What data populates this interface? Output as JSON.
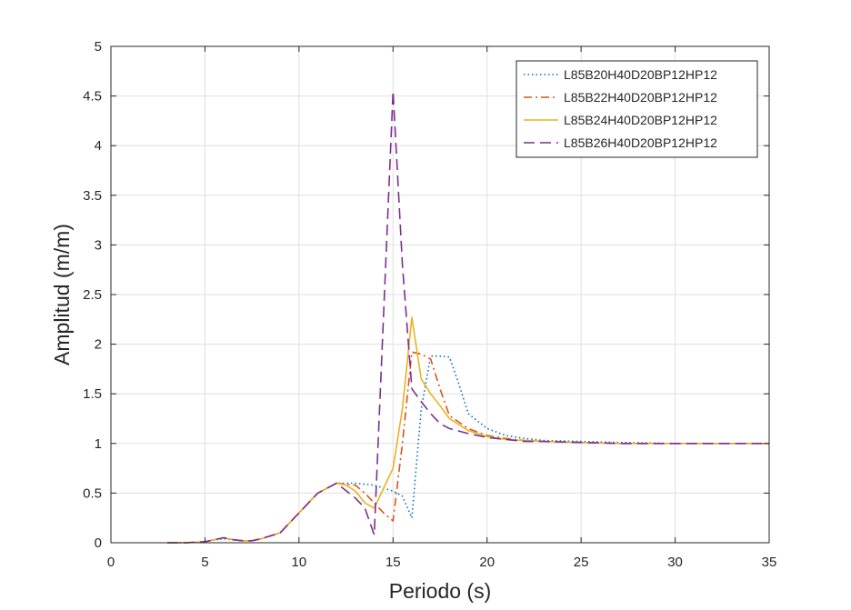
{
  "chart_data": {
    "type": "line",
    "title": "",
    "xlabel": "Periodo (s)",
    "ylabel": "Amplitud (m/m)",
    "xlim": [
      0,
      35
    ],
    "ylim": [
      0,
      5
    ],
    "xticks": [
      0,
      5,
      10,
      15,
      20,
      25,
      30,
      35
    ],
    "yticks": [
      0,
      0.5,
      1,
      1.5,
      2,
      2.5,
      3,
      3.5,
      4,
      4.5,
      5
    ],
    "xtick_labels": [
      "0",
      "5",
      "10",
      "15",
      "20",
      "25",
      "30",
      "35"
    ],
    "ytick_labels": [
      "0",
      "0.5",
      "1",
      "1.5",
      "2",
      "2.5",
      "3",
      "3.5",
      "4",
      "4.5",
      "5"
    ],
    "grid": true,
    "legend_position": "top-right",
    "series": [
      {
        "name": "L85B20H40D20BP12HP12",
        "color": "#0072BD",
        "dash": "dotted",
        "x": [
          3,
          4,
          5,
          5.5,
          6,
          6.5,
          7,
          7.5,
          8,
          9,
          10,
          11,
          12,
          13,
          14,
          14.5,
          15,
          15.5,
          16,
          16.5,
          17,
          17.5,
          18,
          18.5,
          19,
          20,
          21,
          22,
          23,
          25,
          27,
          30,
          35
        ],
        "y": [
          0,
          0,
          0.01,
          0.03,
          0.04,
          0.03,
          0.02,
          0.02,
          0.04,
          0.1,
          0.3,
          0.5,
          0.6,
          0.6,
          0.58,
          0.55,
          0.52,
          0.47,
          0.25,
          1.35,
          1.88,
          1.88,
          1.87,
          1.6,
          1.3,
          1.15,
          1.08,
          1.05,
          1.03,
          1.02,
          1.01,
          1.0,
          1.0
        ]
      },
      {
        "name": "L85B22H40D20BP12HP12",
        "color": "#D95319",
        "dash": "dashdot",
        "x": [
          3,
          4,
          5,
          5.5,
          6,
          6.5,
          7,
          7.5,
          8,
          9,
          10,
          11,
          12,
          13,
          13.5,
          14,
          14.5,
          15,
          15.5,
          16,
          16.5,
          17,
          17.5,
          18,
          19,
          20,
          21,
          22,
          23,
          25,
          27,
          30,
          35
        ],
        "y": [
          0,
          0,
          0.01,
          0.03,
          0.05,
          0.03,
          0.02,
          0.02,
          0.04,
          0.1,
          0.3,
          0.5,
          0.6,
          0.58,
          0.5,
          0.4,
          0.3,
          0.22,
          1.0,
          1.92,
          1.9,
          1.85,
          1.55,
          1.28,
          1.15,
          1.08,
          1.05,
          1.03,
          1.02,
          1.01,
          1.0,
          1.0,
          1.0
        ]
      },
      {
        "name": "L85B24H40D20BP12HP12",
        "color": "#EDB120",
        "dash": "solid",
        "x": [
          3,
          4,
          5,
          5.5,
          6,
          6.5,
          7,
          7.5,
          8,
          9,
          10,
          11,
          12,
          12.5,
          13,
          13.5,
          14,
          15,
          15.5,
          16,
          16.5,
          17,
          17.5,
          18,
          19,
          20,
          21,
          22,
          23,
          25,
          27,
          30,
          35
        ],
        "y": [
          0,
          0,
          0.01,
          0.03,
          0.05,
          0.03,
          0.02,
          0.02,
          0.04,
          0.1,
          0.3,
          0.5,
          0.6,
          0.58,
          0.52,
          0.4,
          0.35,
          0.75,
          1.35,
          2.27,
          1.65,
          1.5,
          1.38,
          1.25,
          1.13,
          1.07,
          1.04,
          1.03,
          1.02,
          1.01,
          1.0,
          1.0,
          1.0
        ]
      },
      {
        "name": "L85B26H40D20BP12HP12",
        "color": "#7E2F8E",
        "dash": "dashed",
        "x": [
          3,
          4,
          5,
          5.5,
          6,
          6.5,
          7,
          7.5,
          8,
          9,
          10,
          11,
          12,
          13,
          13.5,
          14,
          14.5,
          15,
          15.5,
          16,
          16.5,
          17,
          17.5,
          18,
          19,
          20,
          21,
          22,
          23,
          25,
          27,
          30,
          35
        ],
        "y": [
          0,
          0,
          0.01,
          0.03,
          0.05,
          0.03,
          0.02,
          0.02,
          0.04,
          0.1,
          0.3,
          0.5,
          0.6,
          0.45,
          0.35,
          0.08,
          2.3,
          4.55,
          2.8,
          1.55,
          1.42,
          1.3,
          1.2,
          1.15,
          1.1,
          1.06,
          1.04,
          1.02,
          1.02,
          1.01,
          1.0,
          1.0,
          1.0
        ]
      }
    ]
  }
}
